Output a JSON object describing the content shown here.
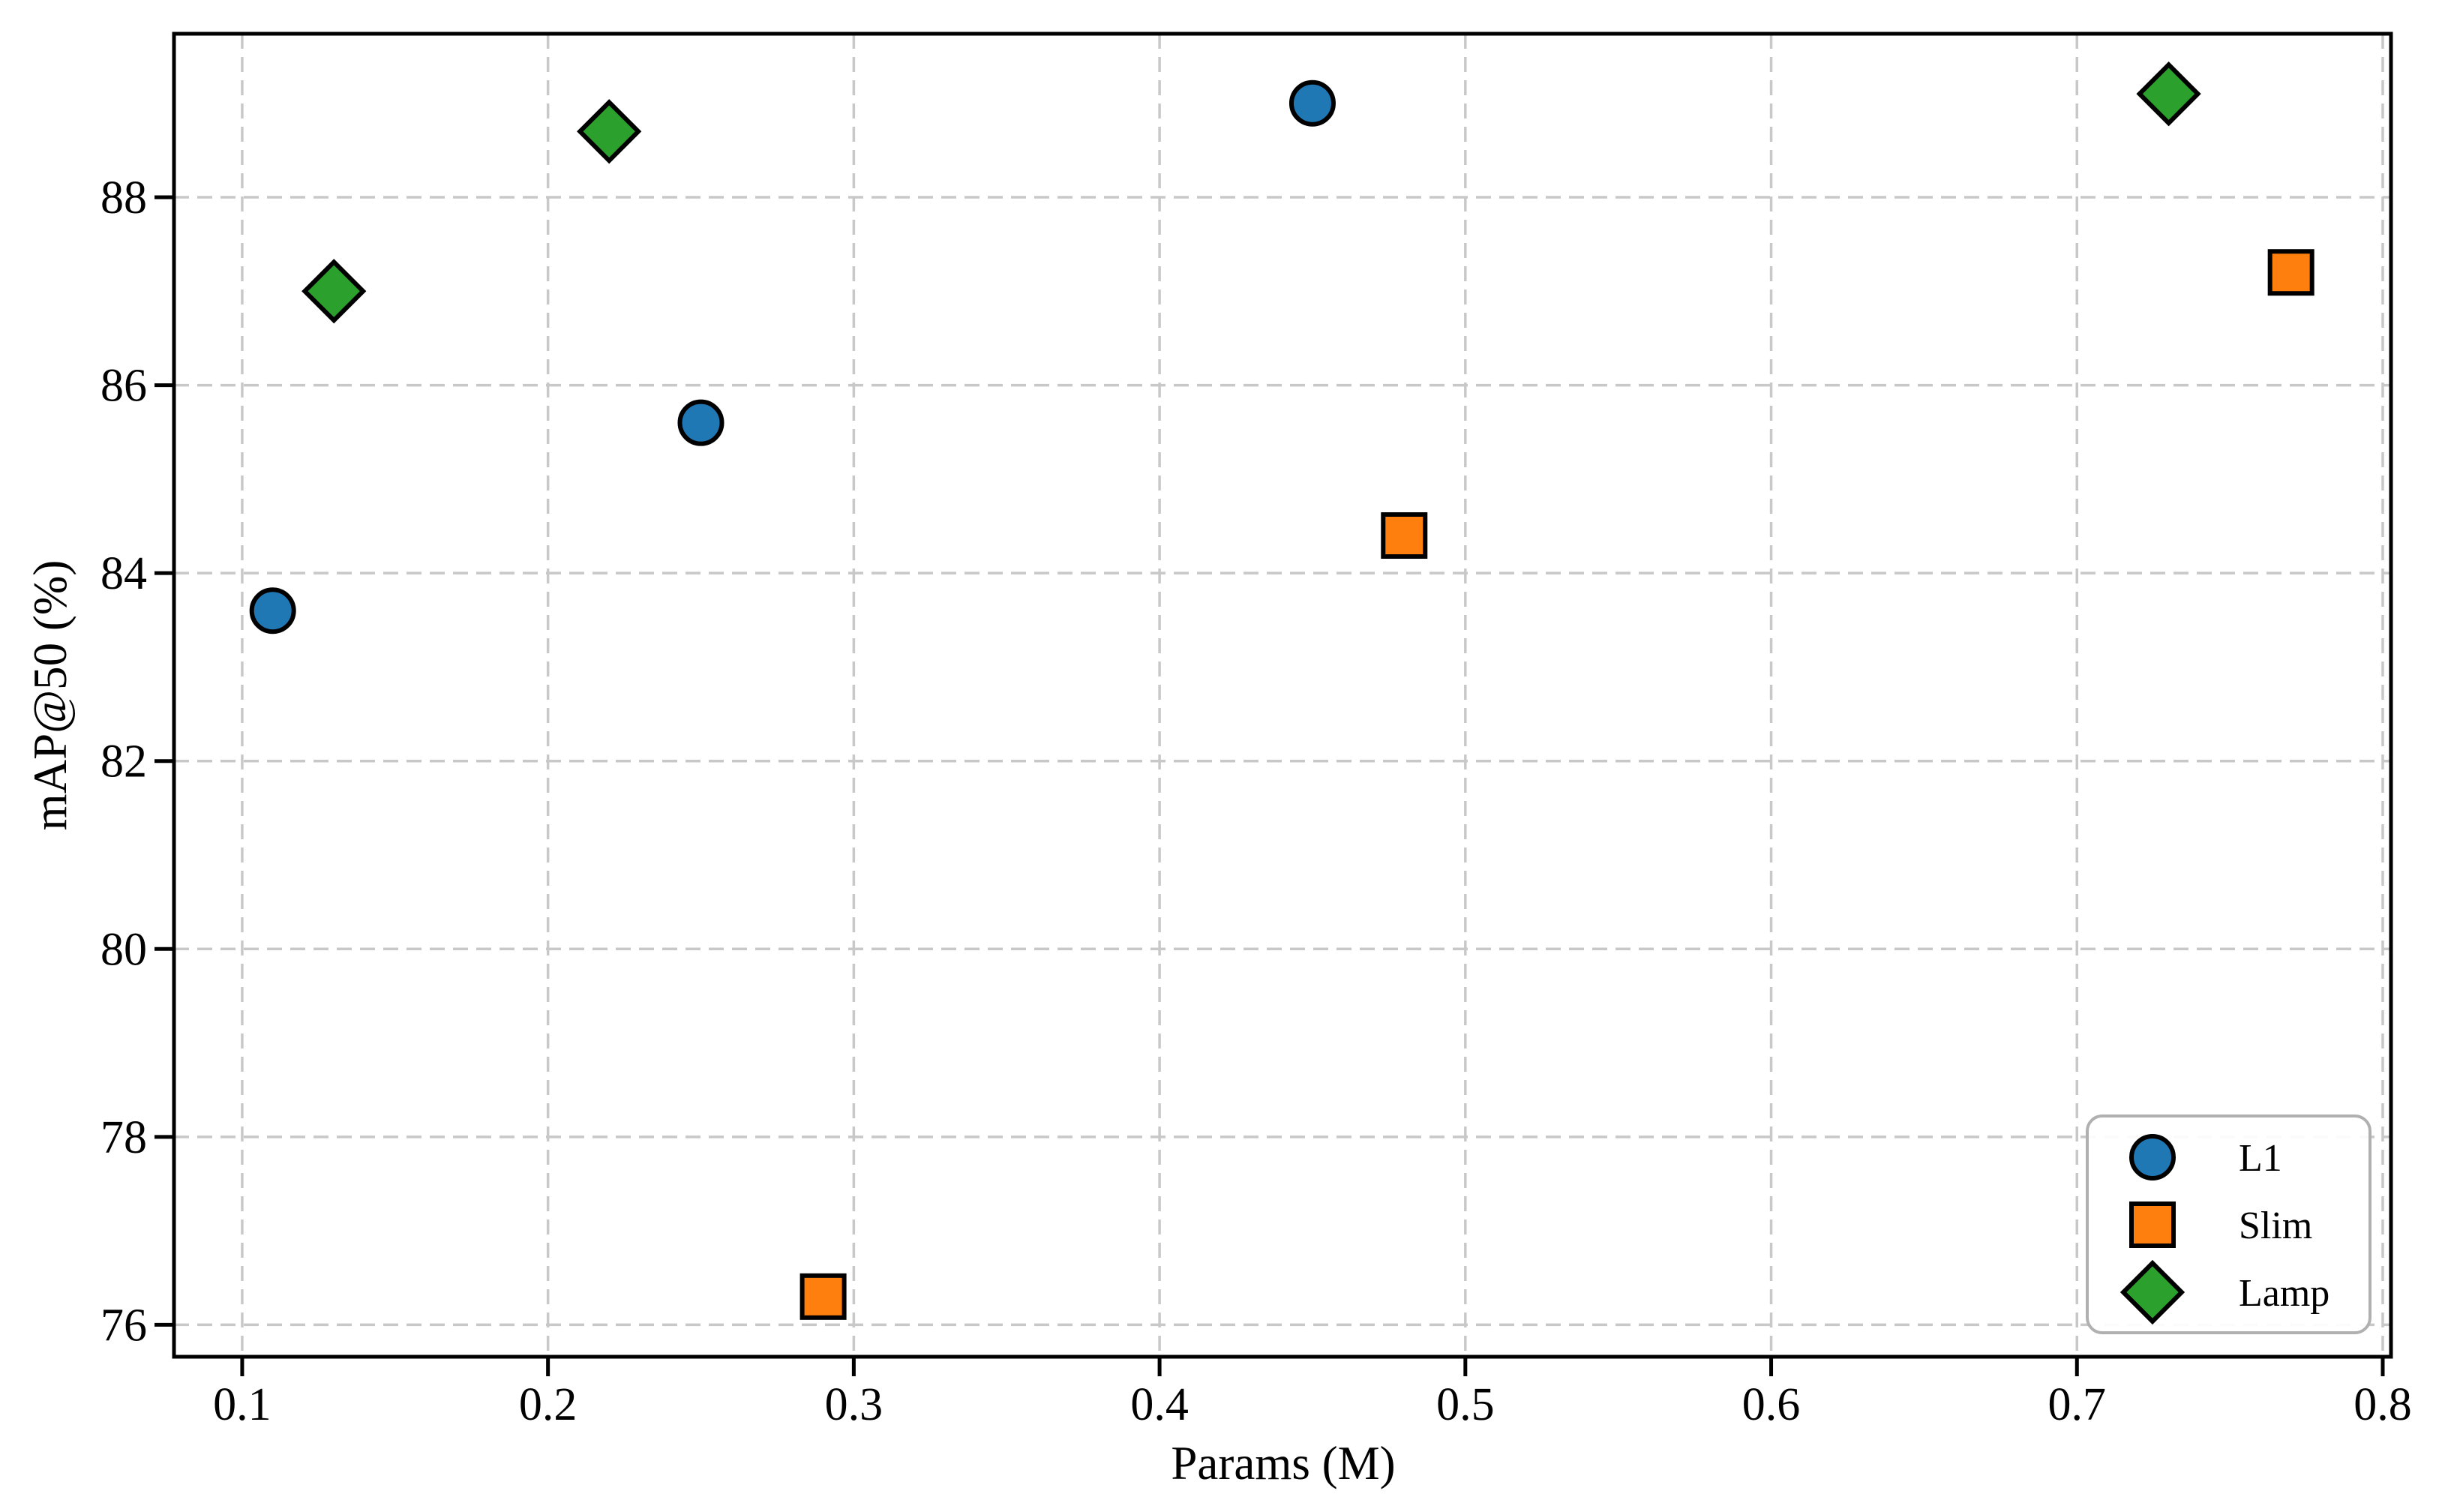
{
  "chart_data": {
    "type": "scatter",
    "title": "",
    "xlabel": "Params (M)",
    "ylabel": "mAP@50 (%)",
    "xlim": [
      0.0777,
      0.8027
    ],
    "ylim": [
      75.66,
      89.74
    ],
    "x_ticks": [
      0.1,
      0.2,
      0.3,
      0.4,
      0.5,
      0.6,
      0.7,
      0.8
    ],
    "x_tick_labels": [
      "0.1",
      "0.2",
      "0.3",
      "0.4",
      "0.5",
      "0.6",
      "0.7",
      "0.8"
    ],
    "y_ticks": [
      76,
      78,
      80,
      82,
      84,
      86,
      88
    ],
    "y_tick_labels": [
      "76",
      "78",
      "80",
      "82",
      "84",
      "86",
      "88"
    ],
    "grid": true,
    "grid_style": "dashed",
    "legend_position": "lower right",
    "series": [
      {
        "name": "L1",
        "marker": "circle",
        "color": "#1f77b4",
        "points": [
          [
            0.11,
            83.6
          ],
          [
            0.25,
            85.6
          ],
          [
            0.45,
            89.0
          ]
        ]
      },
      {
        "name": "Slim",
        "marker": "square",
        "color": "#ff7f0e",
        "points": [
          [
            0.29,
            76.3
          ],
          [
            0.48,
            84.4
          ],
          [
            0.77,
            87.2
          ]
        ]
      },
      {
        "name": "Lamp",
        "marker": "diamond",
        "color": "#2ca02c",
        "points": [
          [
            0.13,
            87.0
          ],
          [
            0.22,
            88.7
          ],
          [
            0.73,
            89.1
          ]
        ]
      }
    ],
    "colors": {
      "marker_edge": "#000000",
      "grid": "#c8c8c8",
      "axis": "#000000",
      "legend_border": "#b0b0b0",
      "background": "#ffffff"
    }
  }
}
